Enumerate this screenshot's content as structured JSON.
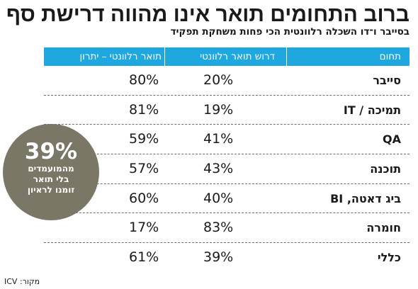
{
  "title": "ברוב התחומים תואר אינו מהווה דרישת סף",
  "subtitle": "בסייבר ו־דו השכלה רלוונטית הכי פחות משחקת תפקיד",
  "columns": {
    "field": "תחום",
    "requires": "דרוש תואר רלוונטי",
    "advantage": "תואר רלוונטי – יתרון"
  },
  "rows": [
    {
      "field": "סייבר",
      "requires": "20%",
      "advantage": "80%"
    },
    {
      "field": "תמיכה / IT",
      "requires": "19%",
      "advantage": "81%"
    },
    {
      "field": "QA",
      "requires": "41%",
      "advantage": "59%"
    },
    {
      "field": "תוכנה",
      "requires": "43%",
      "advantage": "57%"
    },
    {
      "field": "ביג דאטה, BI",
      "requires": "40%",
      "advantage": "60%"
    },
    {
      "field": "חומרה",
      "requires": "83%",
      "advantage": "17%"
    },
    {
      "field": "כללי",
      "requires": "39%",
      "advantage": "61%"
    }
  ],
  "callout": {
    "value": "39%",
    "text": "מהמועמדים בלי תואר זומנו לראיון",
    "color": "#7a7766"
  },
  "source": "מקור: ICV",
  "header_color": "#1fa7e0"
}
